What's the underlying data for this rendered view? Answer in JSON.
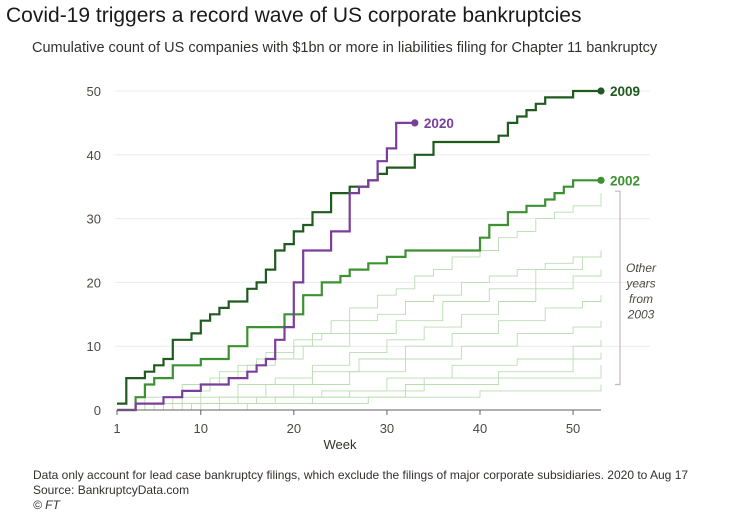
{
  "header": {
    "title": "Covid-19 triggers a record wave of US corporate bankruptcies",
    "subtitle": "Cumulative count of US companies with $1bn or more in liabilities filing for Chapter 11 bankruptcy"
  },
  "footer": {
    "note": "Data only account for lead case bankruptcy filings, which exclude the filings of major corporate subsidiaries. 2020 to Aug 17",
    "source": "Source: BankruptcyData.com",
    "copyright": "© FT"
  },
  "annotation": {
    "lines": [
      "Other",
      "years",
      "from",
      "2003"
    ]
  },
  "colors": {
    "2009": "#1f5a1f",
    "2020": "#7b3f9b",
    "2002": "#3c9130",
    "other": "#b8deb0",
    "grid": "#ececec",
    "bracket": "#c9b3c4"
  },
  "chart_data": {
    "type": "line",
    "step": true,
    "title": "Covid-19 triggers a record wave of US corporate bankruptcies",
    "subtitle": "Cumulative count of US companies with $1bn or more in liabilities filing for Chapter 11 bankruptcy",
    "xlabel": "Week",
    "ylabel": "",
    "xlim": [
      1,
      53
    ],
    "ylim": [
      0,
      50
    ],
    "xticks": [
      1,
      10,
      20,
      30,
      40,
      50
    ],
    "yticks": [
      0,
      10,
      20,
      30,
      40,
      50
    ],
    "grid": true,
    "series": [
      {
        "name": "2009",
        "color": "#1f5a1f",
        "x": [
          1,
          2,
          4,
          5,
          6,
          7,
          9,
          10,
          11,
          12,
          13,
          15,
          16,
          17,
          18,
          19,
          20,
          21,
          22,
          24,
          26,
          28,
          29,
          30,
          33,
          35,
          42,
          43,
          44,
          45,
          46,
          47,
          50,
          53
        ],
        "y": [
          1,
          5,
          6,
          7,
          8,
          11,
          12,
          14,
          15,
          16,
          17,
          19,
          20,
          22,
          25,
          26,
          28,
          29,
          31,
          34,
          35,
          36,
          37,
          38,
          40,
          42,
          43,
          45,
          46,
          47,
          48,
          49,
          50,
          50
        ]
      },
      {
        "name": "2020",
        "color": "#7b3f9b",
        "x": [
          1,
          3,
          6,
          8,
          10,
          13,
          15,
          16,
          17,
          18,
          19,
          20,
          21,
          24,
          26,
          27,
          28,
          29,
          30,
          31,
          33
        ],
        "y": [
          0,
          1,
          2,
          3,
          4,
          5,
          6,
          7,
          8,
          11,
          13,
          20,
          25,
          28,
          34,
          35,
          36,
          39,
          41,
          45,
          45
        ]
      },
      {
        "name": "2002",
        "color": "#3c9130",
        "x": [
          1,
          3,
          4,
          5,
          7,
          10,
          13,
          15,
          19,
          21,
          23,
          25,
          26,
          28,
          30,
          32,
          40,
          41,
          43,
          45,
          47,
          48,
          49,
          50,
          51,
          53
        ],
        "y": [
          0,
          2,
          4,
          5,
          7,
          8,
          10,
          13,
          15,
          18,
          20,
          21,
          22,
          23,
          24,
          25,
          27,
          29,
          31,
          32,
          33,
          34,
          35,
          36,
          36,
          36
        ]
      }
    ],
    "other_years": [
      {
        "x": [
          1,
          4,
          7,
          10,
          12,
          15,
          18,
          20,
          22,
          24,
          26,
          29,
          31,
          33,
          35,
          37,
          40,
          42,
          44,
          46,
          48,
          50,
          53
        ],
        "y": [
          0,
          1,
          2,
          4,
          5,
          7,
          8,
          10,
          12,
          14,
          16,
          18,
          19,
          21,
          22,
          24,
          25,
          27,
          28,
          30,
          31,
          32,
          34
        ]
      },
      {
        "x": [
          1,
          5,
          8,
          11,
          14,
          17,
          20,
          23,
          26,
          29,
          32,
          35,
          38,
          41,
          44,
          47,
          50,
          53
        ],
        "y": [
          0,
          1,
          3,
          5,
          7,
          9,
          11,
          12,
          14,
          15,
          17,
          18,
          20,
          21,
          22,
          23,
          24,
          25
        ]
      },
      {
        "x": [
          1,
          6,
          10,
          14,
          18,
          22,
          26,
          30,
          34,
          38,
          42,
          46,
          50,
          53
        ],
        "y": [
          0,
          1,
          2,
          4,
          5,
          7,
          9,
          11,
          13,
          15,
          17,
          19,
          21,
          22
        ]
      },
      {
        "x": [
          1,
          7,
          12,
          17,
          22,
          27,
          32,
          37,
          42,
          47,
          51,
          53
        ],
        "y": [
          0,
          1,
          2,
          4,
          6,
          8,
          10,
          12,
          14,
          16,
          17,
          18
        ]
      },
      {
        "x": [
          1,
          8,
          14,
          20,
          26,
          32,
          38,
          44,
          50,
          53
        ],
        "y": [
          0,
          1,
          2,
          4,
          6,
          8,
          10,
          12,
          13,
          14
        ]
      },
      {
        "x": [
          1,
          9,
          16,
          23,
          30,
          37,
          44,
          50,
          53
        ],
        "y": [
          0,
          1,
          2,
          3,
          5,
          7,
          8,
          10,
          11
        ]
      },
      {
        "x": [
          1,
          10,
          18,
          26,
          34,
          42,
          50,
          53
        ],
        "y": [
          0,
          1,
          2,
          3,
          5,
          6,
          8,
          9
        ]
      },
      {
        "x": [
          1,
          12,
          22,
          32,
          42,
          53
        ],
        "y": [
          0,
          1,
          2,
          4,
          5,
          7
        ]
      },
      {
        "x": [
          1,
          15,
          28,
          40,
          53
        ],
        "y": [
          0,
          1,
          2,
          3,
          4
        ]
      },
      {
        "x": [
          1,
          4,
          8,
          12,
          16,
          21,
          26,
          31,
          36,
          41,
          46,
          51,
          53
        ],
        "y": [
          0,
          2,
          4,
          6,
          8,
          10,
          12,
          14,
          17,
          19,
          22,
          24,
          25
        ]
      }
    ]
  }
}
